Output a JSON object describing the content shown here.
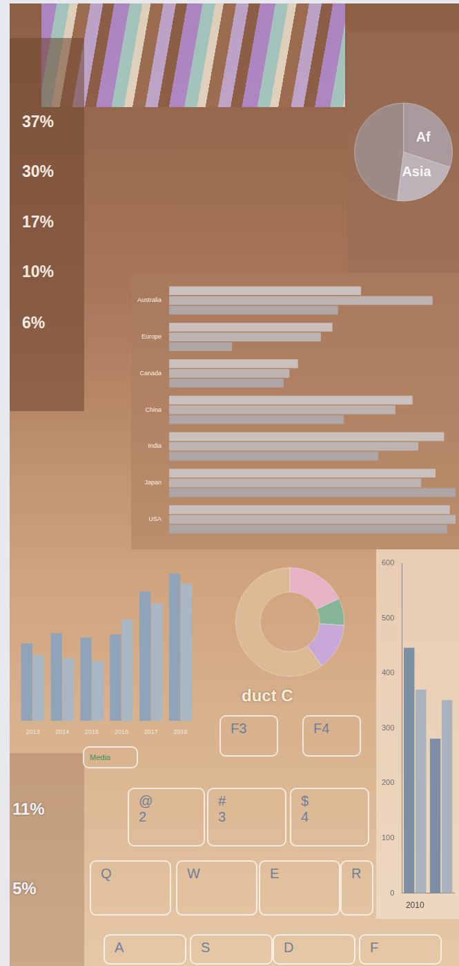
{
  "chart_data": [
    {
      "type": "pie",
      "categories": [
        "Af",
        "Asia",
        null
      ],
      "values": [
        30,
        22,
        48
      ],
      "colors": [
        "#a89a9c",
        "#bcb2b8",
        "#9c8a86"
      ]
    },
    {
      "type": "bar",
      "orientation": "horizontal",
      "categories": [
        "Australia",
        "Europe",
        "Canada",
        "China",
        "India",
        "Japan",
        "USA"
      ],
      "series": [
        {
          "color": "#c9bfbc",
          "values": [
            67,
            57,
            45,
            85,
            96,
            93,
            98
          ]
        },
        {
          "color": "#bdb3b1",
          "values": [
            92,
            53,
            42,
            79,
            87,
            88,
            100
          ]
        },
        {
          "color": "#aea5a6",
          "values": [
            59,
            22,
            40,
            61,
            73,
            100,
            97
          ]
        }
      ],
      "xlim": [
        0,
        100
      ],
      "tick_labels": "y",
      "grid": false
    },
    {
      "type": "bar",
      "categories": [
        "2013",
        "2014",
        "2015",
        "2016",
        "2017",
        "2018"
      ],
      "series": [
        {
          "color": "#8fa3b9",
          "values": [
            130,
            147,
            140,
            145,
            217,
            247
          ]
        },
        {
          "color": "#a9b6c4",
          "values": [
            110,
            105,
            100,
            170,
            197,
            230
          ]
        }
      ],
      "ylim": [
        0,
        260
      ],
      "tick_labels": "x",
      "grid": false
    },
    {
      "type": "doughnut",
      "categories": [
        null,
        null,
        null,
        null
      ],
      "values": [
        18,
        8,
        14,
        60
      ],
      "colors": [
        "#e6b2c6",
        "#86b497",
        "#c7a6d8",
        "#dcb995"
      ],
      "annotation": "duct C"
    },
    {
      "type": "bar",
      "categories": [
        "2010",
        null
      ],
      "series": [
        {
          "color": "#7d8fa5",
          "values": [
            446,
            281
          ]
        },
        {
          "color": "#a9b2bd",
          "values": [
            370,
            351
          ]
        }
      ],
      "ylim": [
        0,
        600
      ],
      "yticks": [
        0,
        100,
        200,
        300,
        400,
        500,
        600
      ],
      "grid": false
    }
  ],
  "percent_column": [
    "37%",
    "30%",
    "17%",
    "10%",
    "6%"
  ],
  "percent_column_lower": [
    "11%",
    "5%"
  ],
  "keyboard": [
    [
      "Media"
    ],
    [
      "F3"
    ],
    [
      "F4"
    ],
    [
      "@",
      "2"
    ],
    [
      "#",
      "3"
    ],
    [
      "$",
      "4"
    ],
    [
      "Q"
    ],
    [
      "W"
    ],
    [
      "E"
    ],
    [
      "R"
    ],
    [
      "A"
    ],
    [
      "S"
    ],
    [
      "D"
    ],
    [
      "F"
    ]
  ]
}
